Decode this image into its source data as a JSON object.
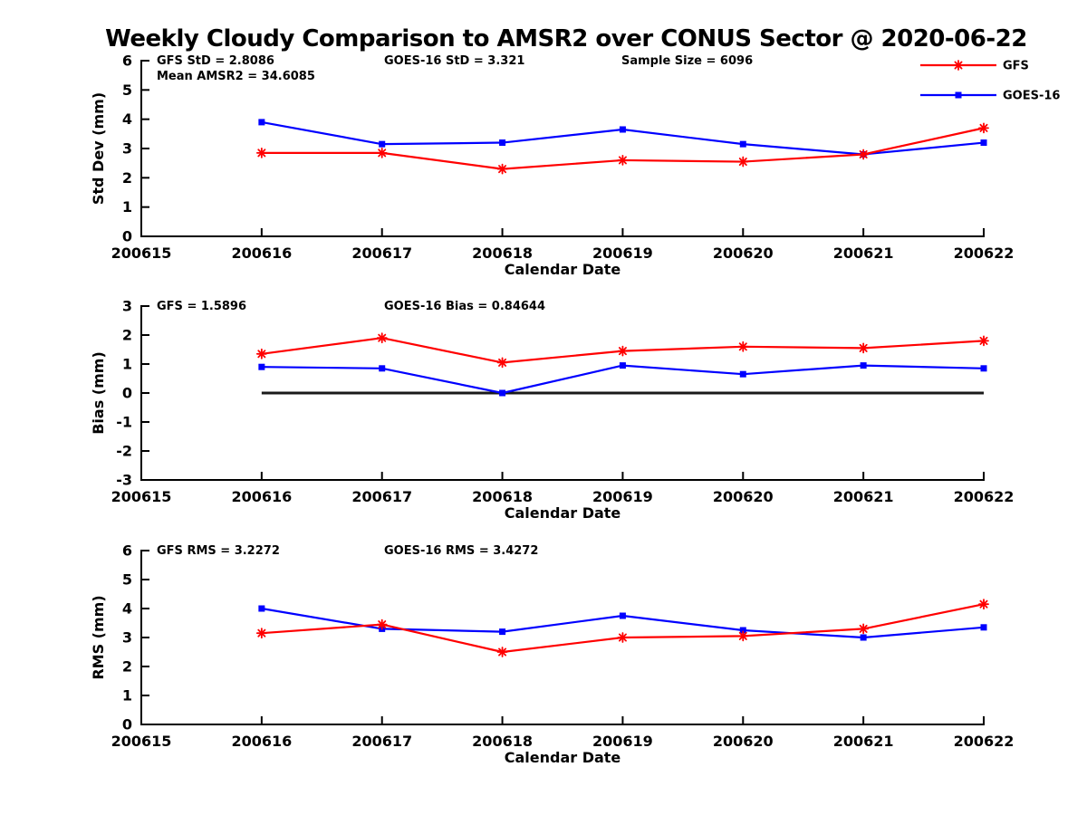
{
  "title": "Weekly Cloudy Comparison to AMSR2 over CONUS Sector @ 2020-06-22",
  "colors": {
    "gfs": "#ff0000",
    "goes16": "#0000ff",
    "axis": "#000000",
    "zero_line": "#1a1a1a"
  },
  "legend": {
    "items": [
      {
        "label": "GFS",
        "color_key": "gfs",
        "marker": "asterisk"
      },
      {
        "label": "GOES-16",
        "color_key": "goes16",
        "marker": "square"
      }
    ]
  },
  "chart_data": [
    {
      "type": "line",
      "panel": "std-dev",
      "ylabel": "Std Dev (mm)",
      "xlabel": "Calendar Date",
      "ylim": [
        0,
        6
      ],
      "yticks": [
        0,
        1,
        2,
        3,
        4,
        5,
        6
      ],
      "xlim": [
        200615,
        200622
      ],
      "xticks": [
        200615,
        200616,
        200617,
        200618,
        200619,
        200620,
        200621,
        200622
      ],
      "x": [
        200616,
        200617,
        200618,
        200619,
        200620,
        200621,
        200622
      ],
      "series": [
        {
          "name": "GFS",
          "color_key": "gfs",
          "marker": "asterisk",
          "values": [
            2.85,
            2.85,
            2.3,
            2.6,
            2.55,
            2.8,
            3.7
          ]
        },
        {
          "name": "GOES-16",
          "color_key": "goes16",
          "marker": "square",
          "values": [
            3.9,
            3.15,
            3.2,
            3.65,
            3.15,
            2.8,
            3.2
          ]
        }
      ],
      "annotations": [
        {
          "text": "GFS StD = 2.8086",
          "col": 0,
          "row": 0
        },
        {
          "text": "Mean AMSR2 = 34.6085",
          "col": 0,
          "row": 1
        },
        {
          "text": "GOES-16 StD = 3.321",
          "col": 1,
          "row": 0
        },
        {
          "text": "Sample Size = 6096",
          "col": 2,
          "row": 0
        }
      ],
      "zero_line": false,
      "grid": false
    },
    {
      "type": "line",
      "panel": "bias",
      "ylabel": "Bias (mm)",
      "xlabel": "Calendar Date",
      "ylim": [
        -3,
        3
      ],
      "yticks": [
        -3,
        -2,
        -1,
        0,
        1,
        2,
        3
      ],
      "xlim": [
        200615,
        200622
      ],
      "xticks": [
        200615,
        200616,
        200617,
        200618,
        200619,
        200620,
        200621,
        200622
      ],
      "x": [
        200616,
        200617,
        200618,
        200619,
        200620,
        200621,
        200622
      ],
      "series": [
        {
          "name": "GFS",
          "color_key": "gfs",
          "marker": "asterisk",
          "values": [
            1.35,
            1.9,
            1.05,
            1.45,
            1.6,
            1.55,
            1.8
          ]
        },
        {
          "name": "GOES-16",
          "color_key": "goes16",
          "marker": "square",
          "values": [
            0.9,
            0.85,
            0.0,
            0.95,
            0.65,
            0.95,
            0.85
          ]
        }
      ],
      "annotations": [
        {
          "text": "GFS = 1.5896",
          "col": 0,
          "row": 0
        },
        {
          "text": "GOES-16 Bias  = 0.84644",
          "col": 1,
          "row": 0
        }
      ],
      "zero_line": true,
      "grid": false
    },
    {
      "type": "line",
      "panel": "rms",
      "ylabel": "RMS (mm)",
      "xlabel": "Calendar Date",
      "ylim": [
        0,
        6
      ],
      "yticks": [
        0,
        1,
        2,
        3,
        4,
        5,
        6
      ],
      "xlim": [
        200615,
        200622
      ],
      "xticks": [
        200615,
        200616,
        200617,
        200618,
        200619,
        200620,
        200621,
        200622
      ],
      "x": [
        200616,
        200617,
        200618,
        200619,
        200620,
        200621,
        200622
      ],
      "series": [
        {
          "name": "GFS",
          "color_key": "gfs",
          "marker": "asterisk",
          "values": [
            3.15,
            3.45,
            2.5,
            3.0,
            3.05,
            3.3,
            4.15
          ]
        },
        {
          "name": "GOES-16",
          "color_key": "goes16",
          "marker": "square",
          "values": [
            4.0,
            3.3,
            3.2,
            3.75,
            3.25,
            3.0,
            3.35
          ]
        }
      ],
      "annotations": [
        {
          "text": "GFS RMS = 3.2272",
          "col": 0,
          "row": 0
        },
        {
          "text": "GOES-16 RMS = 3.4272",
          "col": 1,
          "row": 0
        }
      ],
      "zero_line": false,
      "grid": false
    }
  ]
}
